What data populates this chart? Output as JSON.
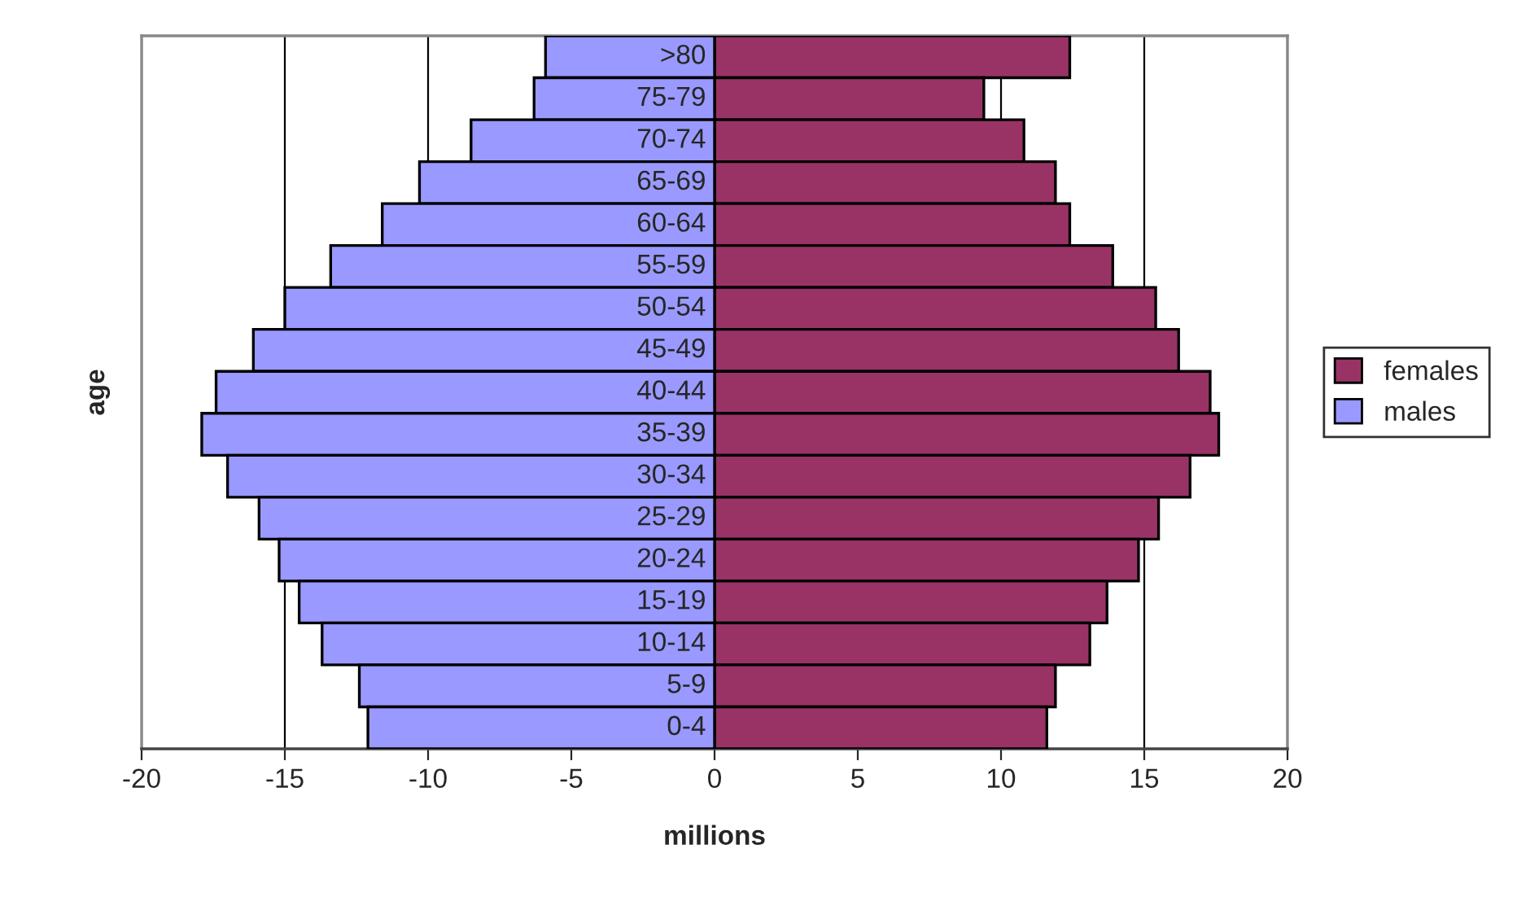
{
  "chart_data": {
    "type": "bar",
    "orientation": "horizontal",
    "xlabel": "millions",
    "ylabel": "age",
    "categories": [
      ">80",
      "75-79",
      "70-74",
      "65-69",
      "60-64",
      "55-59",
      "50-54",
      "45-49",
      "40-44",
      "35-39",
      "30-34",
      "25-29",
      "20-24",
      "15-19",
      "10-14",
      "5-9",
      "0-4"
    ],
    "series": [
      {
        "name": "females",
        "color": "#993366",
        "values": [
          12.4,
          9.4,
          10.8,
          11.9,
          12.4,
          13.9,
          15.4,
          16.2,
          17.3,
          17.6,
          16.6,
          15.5,
          14.8,
          13.7,
          13.1,
          11.9,
          11.6
        ]
      },
      {
        "name": "males",
        "color": "#9999ff",
        "values": [
          -5.9,
          -6.3,
          -8.5,
          -10.3,
          -11.6,
          -13.4,
          -15.0,
          -16.1,
          -17.4,
          -17.9,
          -17.0,
          -15.9,
          -15.2,
          -14.5,
          -13.7,
          -12.4,
          -12.1
        ]
      }
    ],
    "xlim": [
      -20,
      20
    ],
    "xticks": [
      -20,
      -15,
      -10,
      -5,
      0,
      5,
      10,
      15,
      20
    ],
    "grid": "x",
    "legend": "right",
    "stacked": true
  }
}
